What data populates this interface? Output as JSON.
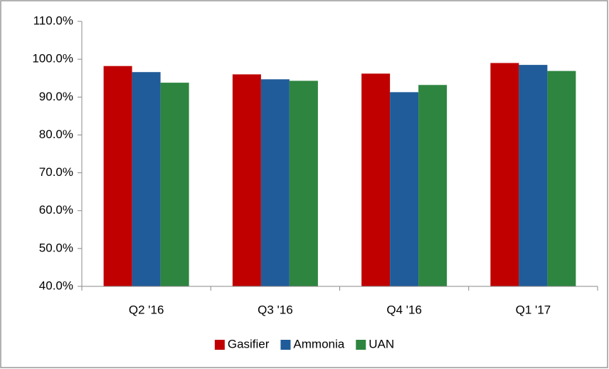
{
  "chart_data": {
    "type": "bar",
    "categories": [
      "Q2 '16",
      "Q3 '16",
      "Q4 '16",
      "Q1 '17"
    ],
    "series": [
      {
        "name": "Gasifier",
        "color": "#c00000",
        "values": [
          98.2,
          96.0,
          96.2,
          99.0
        ]
      },
      {
        "name": "Ammonia",
        "color": "#1f5c99",
        "values": [
          96.6,
          94.7,
          91.3,
          98.5
        ]
      },
      {
        "name": "UAN",
        "color": "#2e8540",
        "values": [
          93.8,
          94.3,
          93.2,
          96.9
        ]
      }
    ],
    "ylim": [
      40,
      110
    ],
    "yticks": [
      {
        "value": 40,
        "label": "40.0%"
      },
      {
        "value": 50,
        "label": "50.0%"
      },
      {
        "value": 60,
        "label": "60.0%"
      },
      {
        "value": 70,
        "label": "70.0%"
      },
      {
        "value": 80,
        "label": "80.0%"
      },
      {
        "value": 90,
        "label": "90.0%"
      },
      {
        "value": 100,
        "label": "100.0%"
      },
      {
        "value": 110,
        "label": "110.0%"
      }
    ],
    "grid": false,
    "legend": "bottom"
  }
}
